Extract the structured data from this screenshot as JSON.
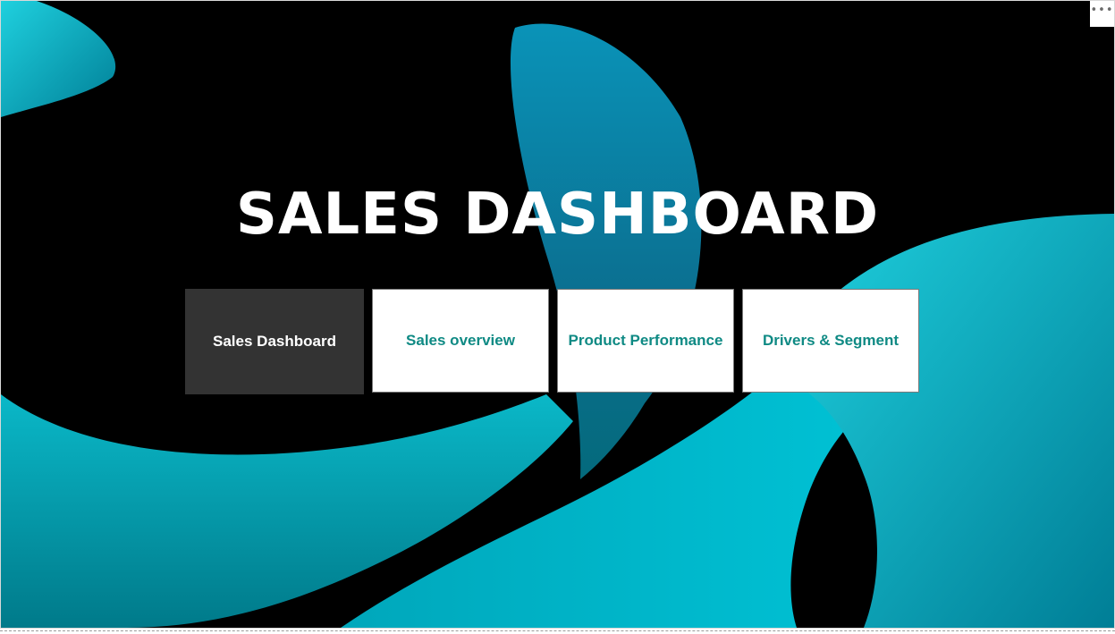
{
  "page": {
    "title": "SALES DASHBOARD",
    "more_menu_icon": "ellipsis-icon",
    "more_menu_glyph": "•••"
  },
  "nav": {
    "buttons": [
      {
        "label": "Sales Dashboard",
        "active": true
      },
      {
        "label": "Sales overview",
        "active": false
      },
      {
        "label": "Product Performance",
        "active": false
      },
      {
        "label": "Drivers & Segment",
        "active": false
      }
    ]
  },
  "colors": {
    "background": "#000000",
    "accent_teal": "#00b8c8",
    "button_text": "#0f8a84",
    "active_button_bg": "#333333"
  }
}
